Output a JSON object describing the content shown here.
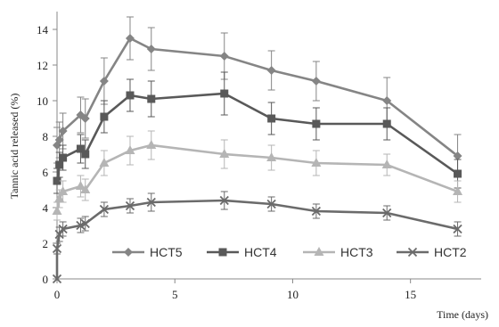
{
  "chart_data": {
    "type": "line",
    "xlabel": "Time (days)",
    "ylabel": "Tannic acid released (%)",
    "xlim": [
      0,
      18
    ],
    "ylim": [
      0,
      15
    ],
    "x_ticks": [
      "0",
      "5",
      "10",
      "15"
    ],
    "y_ticks": [
      "0",
      "2",
      "4",
      "6",
      "8",
      "10",
      "12",
      "14"
    ],
    "grid": false,
    "legend_position": "bottom-center",
    "series": [
      {
        "name": "HCT5",
        "color": "#858585",
        "marker": "diamond",
        "points": [
          {
            "x": 0,
            "y": 7.5,
            "err": 1.0
          },
          {
            "x": 0.1,
            "y": 7.8,
            "err": 1.0
          },
          {
            "x": 0.25,
            "y": 8.3,
            "err": 1.0
          },
          {
            "x": 1,
            "y": 9.2,
            "err": 1.0
          },
          {
            "x": 1.2,
            "y": 9.0,
            "err": 1.1
          },
          {
            "x": 2,
            "y": 11.1,
            "err": 1.3
          },
          {
            "x": 3.1,
            "y": 13.5,
            "err": 1.2
          },
          {
            "x": 4,
            "y": 12.9,
            "err": 1.2
          },
          {
            "x": 7.1,
            "y": 12.5,
            "err": 1.3
          },
          {
            "x": 9.1,
            "y": 11.7,
            "err": 1.1
          },
          {
            "x": 11,
            "y": 11.1,
            "err": 1.1
          },
          {
            "x": 14,
            "y": 10.0,
            "err": 1.3
          },
          {
            "x": 17,
            "y": 6.9,
            "err": 1.2
          }
        ]
      },
      {
        "name": "HCT4",
        "color": "#595959",
        "marker": "square",
        "points": [
          {
            "x": 0,
            "y": 5.5,
            "err": 0.7
          },
          {
            "x": 0.1,
            "y": 6.4,
            "err": 0.7
          },
          {
            "x": 0.25,
            "y": 6.8,
            "err": 0.7
          },
          {
            "x": 1,
            "y": 7.3,
            "err": 0.8
          },
          {
            "x": 1.2,
            "y": 7.0,
            "err": 0.8
          },
          {
            "x": 2,
            "y": 9.1,
            "err": 0.9
          },
          {
            "x": 3.1,
            "y": 10.3,
            "err": 0.9
          },
          {
            "x": 4,
            "y": 10.1,
            "err": 1.0
          },
          {
            "x": 7.1,
            "y": 10.4,
            "err": 1.2
          },
          {
            "x": 9.1,
            "y": 9.0,
            "err": 0.9
          },
          {
            "x": 11,
            "y": 8.7,
            "err": 0.9
          },
          {
            "x": 14,
            "y": 8.7,
            "err": 0.9
          },
          {
            "x": 17,
            "y": 5.9,
            "err": 0.8
          }
        ]
      },
      {
        "name": "HCT3",
        "color": "#b5b5b5",
        "marker": "triangle",
        "points": [
          {
            "x": 0,
            "y": 3.8,
            "err": 0.5
          },
          {
            "x": 0.1,
            "y": 4.5,
            "err": 0.5
          },
          {
            "x": 0.25,
            "y": 4.9,
            "err": 0.6
          },
          {
            "x": 1,
            "y": 5.2,
            "err": 0.6
          },
          {
            "x": 1.2,
            "y": 5.0,
            "err": 0.6
          },
          {
            "x": 2,
            "y": 6.5,
            "err": 0.7
          },
          {
            "x": 3.1,
            "y": 7.2,
            "err": 0.8
          },
          {
            "x": 4,
            "y": 7.5,
            "err": 0.8
          },
          {
            "x": 7.1,
            "y": 7.0,
            "err": 0.8
          },
          {
            "x": 9.1,
            "y": 6.8,
            "err": 0.7
          },
          {
            "x": 11,
            "y": 6.5,
            "err": 0.7
          },
          {
            "x": 14,
            "y": 6.4,
            "err": 0.6
          },
          {
            "x": 17,
            "y": 4.9,
            "err": 0.6
          }
        ]
      },
      {
        "name": "HCT2",
        "color": "#6b6b6b",
        "marker": "x",
        "points": [
          {
            "x": 0,
            "y": 0,
            "err": 0
          },
          {
            "x": 0,
            "y": 1.7,
            "err": 0.3
          },
          {
            "x": 0.1,
            "y": 2.5,
            "err": 0.4
          },
          {
            "x": 0.25,
            "y": 2.8,
            "err": 0.4
          },
          {
            "x": 1,
            "y": 3.0,
            "err": 0.4
          },
          {
            "x": 1.2,
            "y": 3.1,
            "err": 0.4
          },
          {
            "x": 2,
            "y": 3.9,
            "err": 0.4
          },
          {
            "x": 3.1,
            "y": 4.1,
            "err": 0.4
          },
          {
            "x": 4,
            "y": 4.3,
            "err": 0.5
          },
          {
            "x": 7.1,
            "y": 4.4,
            "err": 0.5
          },
          {
            "x": 9.1,
            "y": 4.2,
            "err": 0.4
          },
          {
            "x": 11,
            "y": 3.8,
            "err": 0.4
          },
          {
            "x": 14,
            "y": 3.7,
            "err": 0.4
          },
          {
            "x": 17,
            "y": 2.8,
            "err": 0.4
          }
        ]
      }
    ]
  }
}
